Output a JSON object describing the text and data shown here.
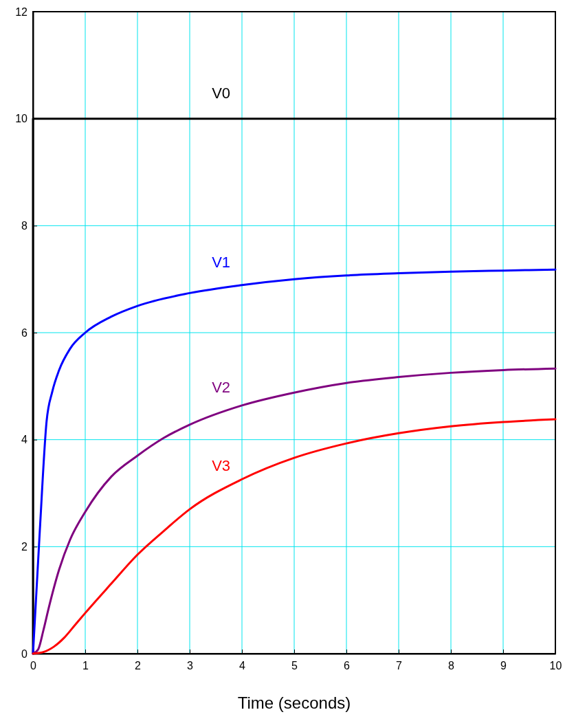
{
  "chart_data": {
    "type": "line",
    "xlabel": "Time (seconds)",
    "xlim": [
      0,
      10
    ],
    "ylim": [
      0,
      12
    ],
    "xticks": [
      0,
      1,
      2,
      3,
      4,
      5,
      6,
      7,
      8,
      9,
      10
    ],
    "yticks": [
      0,
      2,
      4,
      6,
      8,
      10,
      12
    ],
    "grid": true,
    "marker": "none",
    "line_style": "solid",
    "series": [
      {
        "name": "V0",
        "color": "#000000",
        "x": [
          0,
          0,
          10
        ],
        "values": [
          0,
          10,
          10
        ]
      },
      {
        "name": "V1",
        "color": "#0000ff",
        "x": [
          0,
          0.13,
          0.26,
          0.37,
          0.5,
          0.71,
          1,
          1.5,
          2,
          3,
          4,
          5,
          6,
          7,
          8,
          9,
          10
        ],
        "values": [
          0,
          2.29,
          4.34,
          4.9,
          5.3,
          5.7,
          6.0,
          6.3,
          6.5,
          6.74,
          6.89,
          7.0,
          7.07,
          7.11,
          7.14,
          7.16,
          7.18
        ]
      },
      {
        "name": "V2",
        "color": "#7f007f",
        "x": [
          0,
          0.1,
          0.2,
          0.3,
          0.5,
          0.71,
          1,
          1.5,
          2,
          2.5,
          3,
          4,
          5,
          6,
          7,
          8,
          9,
          10
        ],
        "values": [
          0,
          0.08,
          0.44,
          0.85,
          1.57,
          2.13,
          2.65,
          3.31,
          3.7,
          4.03,
          4.28,
          4.64,
          4.88,
          5.06,
          5.17,
          5.25,
          5.3,
          5.33
        ]
      },
      {
        "name": "V3",
        "color": "#ff0000",
        "x": [
          0,
          0.2,
          0.4,
          0.6,
          0.8,
          1,
          1.5,
          2,
          2.5,
          3,
          4,
          5,
          6,
          7,
          8,
          9,
          10
        ],
        "values": [
          0,
          0.03,
          0.13,
          0.3,
          0.53,
          0.76,
          1.31,
          1.85,
          2.29,
          2.7,
          3.26,
          3.66,
          3.93,
          4.12,
          4.25,
          4.33,
          4.38
        ]
      }
    ]
  }
}
